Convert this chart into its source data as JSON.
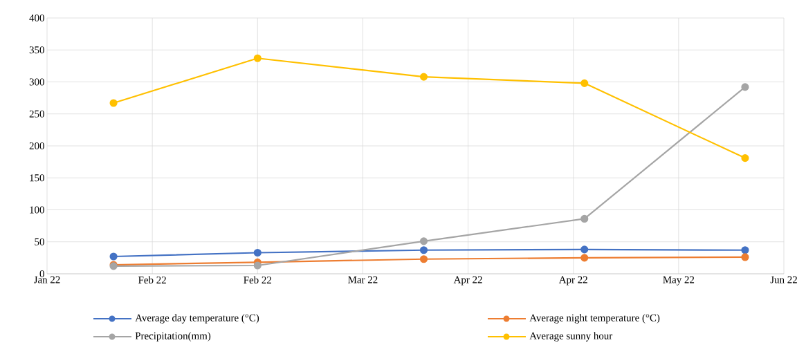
{
  "chart_data": {
    "type": "line",
    "x": [
      "2022-02-01",
      "2022-02-27",
      "2022-03-29",
      "2022-04-27",
      "2022-05-26"
    ],
    "xlim": [
      "2022-01-20",
      "2022-06-02"
    ],
    "xticks": [
      {
        "value": "2022-01-20",
        "label": "Jan 22"
      },
      {
        "value": "2022-02-08",
        "label": "Feb 22"
      },
      {
        "value": "2022-02-27",
        "label": "Feb 22"
      },
      {
        "value": "2022-03-18",
        "label": "Mar 22"
      },
      {
        "value": "2022-04-06",
        "label": "Apr 22"
      },
      {
        "value": "2022-04-25",
        "label": "Apr 22"
      },
      {
        "value": "2022-05-14",
        "label": "May 22"
      },
      {
        "value": "2022-06-02",
        "label": "Jun 22"
      }
    ],
    "ylim": [
      0,
      400
    ],
    "yticks": [
      0,
      50,
      100,
      150,
      200,
      250,
      300,
      350,
      400
    ],
    "grid": true,
    "legend": "bottom",
    "marker": "circle",
    "line_style": "solid",
    "series": [
      {
        "name": "Average day temperature (°C)",
        "color": "#4472c4",
        "values": [
          27,
          33,
          37,
          38,
          37
        ]
      },
      {
        "name": "Average night temperature (°C)",
        "color": "#ed7d31",
        "values": [
          14,
          18,
          23,
          25,
          26
        ]
      },
      {
        "name": "Precipitation(mm)",
        "color": "#a5a5a5",
        "values": [
          12,
          13,
          51,
          86,
          292
        ]
      },
      {
        "name": "Average sunny hour",
        "color": "#ffc000",
        "values": [
          267,
          337,
          308,
          298,
          181
        ]
      }
    ]
  }
}
